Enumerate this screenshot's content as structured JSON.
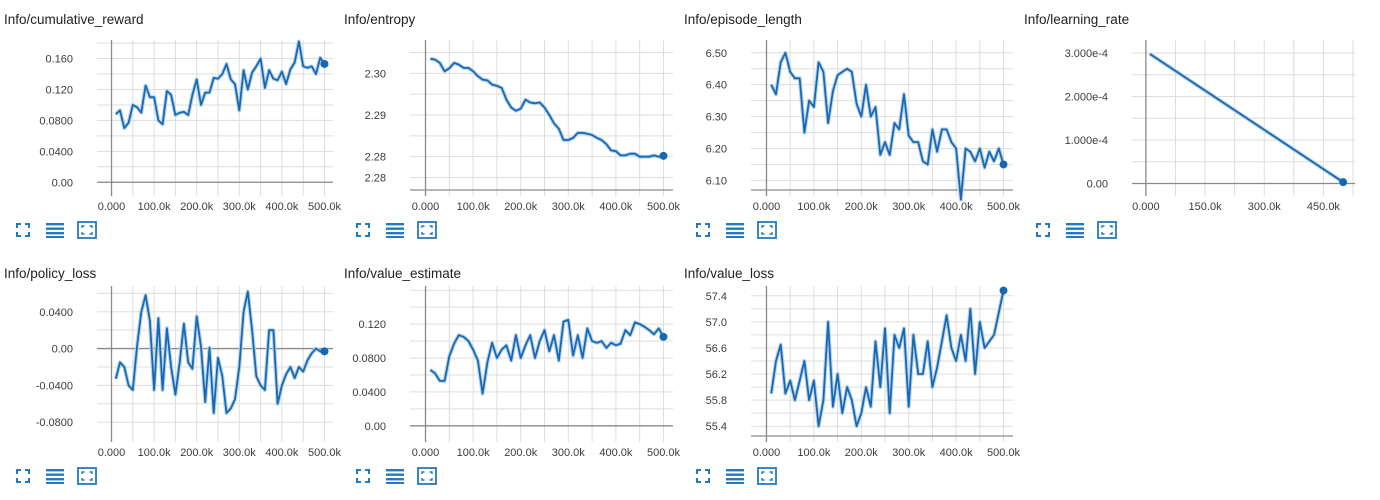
{
  "toolbar": {
    "icons": [
      "fullscreen-icon",
      "data-table-icon",
      "fit-domain-icon"
    ]
  },
  "colors": {
    "line": "#1768b3",
    "smoothed_shadow": "#b9d3ea",
    "grid": "#dddddd",
    "axis": "#8a8a8a",
    "tick_text": "#3c3c3c",
    "icon": "#2479c0"
  },
  "cards": [
    {
      "title": "Info/cumulative_reward",
      "chart_data": {
        "type": "line",
        "title": "Info/cumulative_reward",
        "xlabel": "",
        "ylabel": "",
        "x_ticks": [
          "0.000",
          "100.0k",
          "200.0k",
          "300.0k",
          "400.0k",
          "500.0k"
        ],
        "y_ticks": [
          "0.00",
          "0.0400",
          "0.0800",
          "0.120",
          "0.160"
        ],
        "xlim": [
          -20000,
          520000
        ],
        "ylim": [
          -0.01,
          0.184
        ],
        "grid": true,
        "series": [
          {
            "x": [
              10000,
              20000,
              30000,
              40000,
              50000,
              60000,
              70000,
              80000,
              90000,
              100000,
              110000,
              120000,
              130000,
              140000,
              150000,
              160000,
              170000,
              180000,
              190000,
              200000,
              210000,
              220000,
              230000,
              240000,
              250000,
              260000,
              270000,
              280000,
              290000,
              300000,
              310000,
              320000,
              330000,
              340000,
              350000,
              360000,
              370000,
              380000,
              390000,
              400000,
              410000,
              420000,
              430000,
              440000,
              450000,
              460000,
              470000,
              480000,
              490000,
              500000
            ],
            "y": [
              0.088,
              0.093,
              0.07,
              0.077,
              0.1,
              0.097,
              0.09,
              0.125,
              0.11,
              0.11,
              0.08,
              0.075,
              0.118,
              0.113,
              0.087,
              0.09,
              0.091,
              0.087,
              0.113,
              0.133,
              0.1,
              0.116,
              0.116,
              0.135,
              0.134,
              0.14,
              0.153,
              0.133,
              0.127,
              0.093,
              0.145,
              0.12,
              0.142,
              0.15,
              0.16,
              0.122,
              0.145,
              0.134,
              0.132,
              0.143,
              0.127,
              0.146,
              0.155,
              0.182,
              0.15,
              0.148,
              0.15,
              0.14,
              0.161,
              0.153
            ]
          }
        ]
      }
    },
    {
      "title": "Info/entropy",
      "chart_data": {
        "type": "line",
        "title": "Info/entropy",
        "xlabel": "",
        "ylabel": "",
        "x_ticks": [
          "0.000",
          "100.0k",
          "200.0k",
          "300.0k",
          "400.0k",
          "500.0k"
        ],
        "y_ticks": [
          "2.28",
          "2.28",
          "2.29",
          "2.30"
        ],
        "y_tick_values": [
          2.275,
          2.28,
          2.29,
          2.3
        ],
        "xlim": [
          -20000,
          520000
        ],
        "ylim": [
          2.272,
          2.308
        ],
        "grid": true,
        "series": [
          {
            "x": [
              10000,
              20000,
              30000,
              40000,
              50000,
              60000,
              70000,
              80000,
              90000,
              100000,
              110000,
              120000,
              130000,
              140000,
              150000,
              160000,
              170000,
              180000,
              190000,
              200000,
              210000,
              220000,
              230000,
              240000,
              250000,
              260000,
              270000,
              280000,
              290000,
              300000,
              310000,
              320000,
              330000,
              340000,
              350000,
              360000,
              370000,
              380000,
              390000,
              400000,
              410000,
              420000,
              430000,
              440000,
              450000,
              460000,
              470000,
              480000,
              490000,
              500000
            ],
            "y": [
              2.3035,
              2.3033,
              2.3025,
              2.3005,
              2.3012,
              2.3025,
              2.3021,
              2.3013,
              2.3013,
              2.3005,
              2.2993,
              2.2985,
              2.2983,
              2.2973,
              2.297,
              2.2965,
              2.2937,
              2.2918,
              2.291,
              2.2915,
              2.2937,
              2.293,
              2.2928,
              2.293,
              2.2918,
              2.29,
              2.288,
              2.2867,
              2.284,
              2.284,
              2.2845,
              2.2857,
              2.2857,
              2.2855,
              2.2852,
              2.2845,
              2.284,
              2.283,
              2.2815,
              2.2813,
              2.2803,
              2.2803,
              2.2807,
              2.2807,
              2.28,
              2.28,
              2.28,
              2.2803,
              2.28,
              2.2802
            ]
          }
        ]
      }
    },
    {
      "title": "Info/episode_length",
      "chart_data": {
        "type": "line",
        "title": "Info/episode_length",
        "xlabel": "",
        "ylabel": "",
        "x_ticks": [
          "0.000",
          "100.0k",
          "200.0k",
          "300.0k",
          "400.0k",
          "500.0k"
        ],
        "y_ticks": [
          "6.10",
          "6.20",
          "6.30",
          "6.40",
          "6.50"
        ],
        "xlim": [
          -20000,
          520000
        ],
        "ylim": [
          6.07,
          6.54
        ],
        "grid": true,
        "series": [
          {
            "x": [
              10000,
              20000,
              30000,
              40000,
              50000,
              60000,
              70000,
              80000,
              90000,
              100000,
              110000,
              120000,
              130000,
              140000,
              150000,
              160000,
              170000,
              180000,
              190000,
              200000,
              210000,
              220000,
              230000,
              240000,
              250000,
              260000,
              270000,
              280000,
              290000,
              300000,
              310000,
              320000,
              330000,
              340000,
              350000,
              360000,
              370000,
              380000,
              390000,
              400000,
              410000,
              420000,
              430000,
              440000,
              450000,
              460000,
              470000,
              480000,
              490000,
              500000
            ],
            "y": [
              6.4,
              6.37,
              6.47,
              6.5,
              6.44,
              6.42,
              6.42,
              6.25,
              6.35,
              6.33,
              6.47,
              6.44,
              6.28,
              6.38,
              6.43,
              6.44,
              6.45,
              6.44,
              6.34,
              6.3,
              6.4,
              6.3,
              6.33,
              6.18,
              6.22,
              6.18,
              6.28,
              6.26,
              6.37,
              6.24,
              6.22,
              6.22,
              6.16,
              6.15,
              6.26,
              6.19,
              6.26,
              6.26,
              6.22,
              6.2,
              6.04,
              6.2,
              6.19,
              6.16,
              6.2,
              6.14,
              6.19,
              6.16,
              6.2,
              6.15
            ]
          }
        ]
      }
    },
    {
      "title": "Info/learning_rate",
      "chart_data": {
        "type": "line",
        "title": "Info/learning_rate",
        "xlabel": "",
        "ylabel": "",
        "x_ticks": [
          "0.000",
          "150.0k",
          "300.0k",
          "450.0k"
        ],
        "x_tick_values": [
          0,
          150000,
          300000,
          450000
        ],
        "y_ticks": [
          "0.00",
          "1.000e-4",
          "2.000e-4",
          "3.000e-4"
        ],
        "y_tick_values": [
          0,
          0.0001,
          0.0002,
          0.0003
        ],
        "xlim": [
          -20000,
          530000
        ],
        "ylim": [
          -1.5e-05,
          0.00033
        ],
        "grid": true,
        "series": [
          {
            "x": [
              10000,
              500000
            ],
            "y": [
              0.000298,
              3e-06
            ]
          }
        ]
      }
    },
    {
      "title": "Info/policy_loss",
      "chart_data": {
        "type": "line",
        "title": "Info/policy_loss",
        "xlabel": "",
        "ylabel": "",
        "x_ticks": [
          "0.000",
          "100.0k",
          "200.0k",
          "300.0k",
          "400.0k",
          "500.0k"
        ],
        "y_ticks": [
          "-0.0800",
          "-0.0400",
          "0.00",
          "0.0400"
        ],
        "y_tick_values": [
          -0.08,
          -0.04,
          0,
          0.04
        ],
        "xlim": [
          -20000,
          520000
        ],
        "ylim": [
          -0.095,
          0.068
        ],
        "grid": true,
        "series": [
          {
            "x": [
              10000,
              20000,
              30000,
              40000,
              50000,
              60000,
              70000,
              80000,
              90000,
              100000,
              110000,
              120000,
              130000,
              140000,
              150000,
              160000,
              170000,
              180000,
              190000,
              200000,
              210000,
              220000,
              230000,
              240000,
              250000,
              260000,
              270000,
              280000,
              290000,
              300000,
              310000,
              320000,
              330000,
              340000,
              350000,
              360000,
              370000,
              380000,
              390000,
              400000,
              410000,
              420000,
              430000,
              440000,
              450000,
              460000,
              470000,
              480000,
              490000,
              500000
            ],
            "y": [
              -0.033,
              -0.015,
              -0.02,
              -0.04,
              -0.045,
              0.003,
              0.04,
              0.058,
              0.03,
              -0.045,
              0.033,
              -0.045,
              0.022,
              -0.02,
              -0.05,
              -0.015,
              0.027,
              -0.015,
              -0.022,
              0.035,
              0.002,
              -0.058,
              0.001,
              -0.07,
              -0.01,
              -0.03,
              -0.07,
              -0.065,
              -0.055,
              -0.02,
              0.04,
              0.062,
              0.02,
              -0.03,
              -0.04,
              -0.045,
              0.02,
              0.02,
              -0.06,
              -0.04,
              -0.028,
              -0.02,
              -0.032,
              -0.02,
              -0.025,
              -0.013,
              -0.005,
              0.0,
              -0.003,
              -0.003
            ]
          }
        ]
      }
    },
    {
      "title": "Info/value_estimate",
      "chart_data": {
        "type": "line",
        "title": "Info/value_estimate",
        "xlabel": "",
        "ylabel": "",
        "x_ticks": [
          "0.000",
          "100.0k",
          "200.0k",
          "300.0k",
          "400.0k",
          "500.0k"
        ],
        "y_ticks": [
          "0.00",
          "0.0400",
          "0.0800",
          "0.120"
        ],
        "y_tick_values": [
          0,
          0.04,
          0.08,
          0.12
        ],
        "xlim": [
          -20000,
          520000
        ],
        "ylim": [
          -0.012,
          0.165
        ],
        "grid": true,
        "series": [
          {
            "x": [
              10000,
              20000,
              30000,
              40000,
              50000,
              60000,
              70000,
              80000,
              90000,
              100000,
              110000,
              120000,
              130000,
              140000,
              150000,
              160000,
              170000,
              180000,
              190000,
              200000,
              210000,
              220000,
              230000,
              240000,
              250000,
              260000,
              270000,
              280000,
              290000,
              300000,
              310000,
              320000,
              330000,
              340000,
              350000,
              360000,
              370000,
              380000,
              390000,
              400000,
              410000,
              420000,
              430000,
              440000,
              450000,
              460000,
              470000,
              480000,
              490000,
              500000
            ],
            "y": [
              0.066,
              0.062,
              0.053,
              0.053,
              0.082,
              0.097,
              0.107,
              0.105,
              0.1,
              0.09,
              0.077,
              0.038,
              0.075,
              0.098,
              0.08,
              0.09,
              0.095,
              0.077,
              0.107,
              0.08,
              0.095,
              0.107,
              0.08,
              0.1,
              0.113,
              0.088,
              0.107,
              0.077,
              0.123,
              0.125,
              0.083,
              0.107,
              0.08,
              0.115,
              0.1,
              0.098,
              0.1,
              0.092,
              0.098,
              0.095,
              0.097,
              0.113,
              0.107,
              0.122,
              0.12,
              0.117,
              0.113,
              0.108,
              0.115,
              0.105
            ]
          }
        ]
      }
    },
    {
      "title": "Info/value_loss",
      "chart_data": {
        "type": "line",
        "title": "Info/value_loss",
        "xlabel": "",
        "ylabel": "",
        "x_ticks": [
          "0.000",
          "100.0k",
          "200.0k",
          "300.0k",
          "400.0k",
          "500.0k"
        ],
        "y_ticks": [
          "55.4",
          "55.8",
          "56.2",
          "56.6",
          "57.0",
          "57.4"
        ],
        "xlim": [
          -20000,
          520000
        ],
        "ylim": [
          55.25,
          57.55
        ],
        "grid": true,
        "series": [
          {
            "x": [
              10000,
              20000,
              30000,
              40000,
              50000,
              60000,
              70000,
              80000,
              90000,
              100000,
              110000,
              120000,
              130000,
              140000,
              150000,
              160000,
              170000,
              180000,
              190000,
              200000,
              210000,
              220000,
              230000,
              240000,
              250000,
              260000,
              270000,
              280000,
              290000,
              300000,
              310000,
              320000,
              330000,
              340000,
              350000,
              360000,
              370000,
              380000,
              390000,
              400000,
              410000,
              420000,
              430000,
              440000,
              450000,
              460000,
              480000,
              500000
            ],
            "y": [
              55.9,
              56.4,
              56.65,
              55.9,
              56.1,
              55.8,
              56.1,
              56.4,
              55.8,
              56.1,
              55.4,
              55.8,
              57.0,
              55.7,
              56.2,
              55.6,
              56.0,
              55.8,
              55.4,
              55.6,
              56.0,
              55.7,
              56.7,
              56.0,
              56.9,
              55.6,
              56.8,
              56.6,
              56.9,
              55.7,
              56.8,
              56.2,
              56.2,
              56.7,
              56.0,
              56.3,
              56.7,
              57.1,
              56.6,
              56.4,
              56.8,
              56.4,
              57.2,
              56.2,
              57.0,
              56.6,
              56.8,
              57.48
            ]
          }
        ]
      }
    }
  ]
}
